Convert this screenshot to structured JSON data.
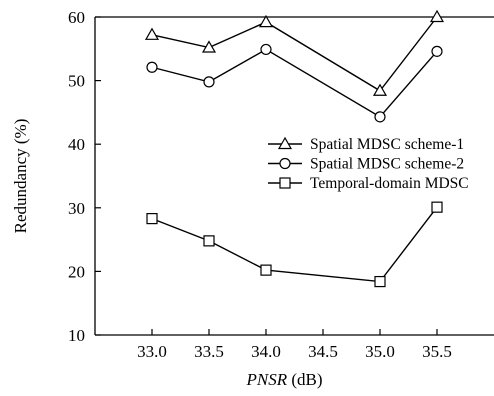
{
  "chart_data": {
    "type": "line",
    "title": "",
    "xlabel_italic": "PNSR",
    "xlabel_unit": " (dB)",
    "ylabel": "Redundancy (%)",
    "x": [
      33.0,
      33.5,
      34.0,
      35.0,
      35.5
    ],
    "xticks": [
      "33.0",
      "33.5",
      "34.0",
      "34.5",
      "35.0",
      "35.5"
    ],
    "xlim": [
      32.5,
      36.0
    ],
    "yticks": [
      "10",
      "20",
      "30",
      "40",
      "50",
      "60"
    ],
    "ylim": [
      10,
      60
    ],
    "grid": false,
    "legend_position": "right",
    "series": [
      {
        "name": "Spatial MDSC scheme-1",
        "marker": "triangle",
        "values": [
          57.2,
          55.2,
          59.2,
          48.4,
          60.0
        ]
      },
      {
        "name": "Spatial MDSC scheme-2",
        "marker": "circle",
        "values": [
          52.1,
          49.8,
          54.9,
          44.3,
          54.6
        ]
      },
      {
        "name": "Temporal-domain MDSC",
        "marker": "square",
        "values": [
          28.3,
          24.8,
          20.2,
          18.4,
          30.1
        ]
      }
    ]
  }
}
